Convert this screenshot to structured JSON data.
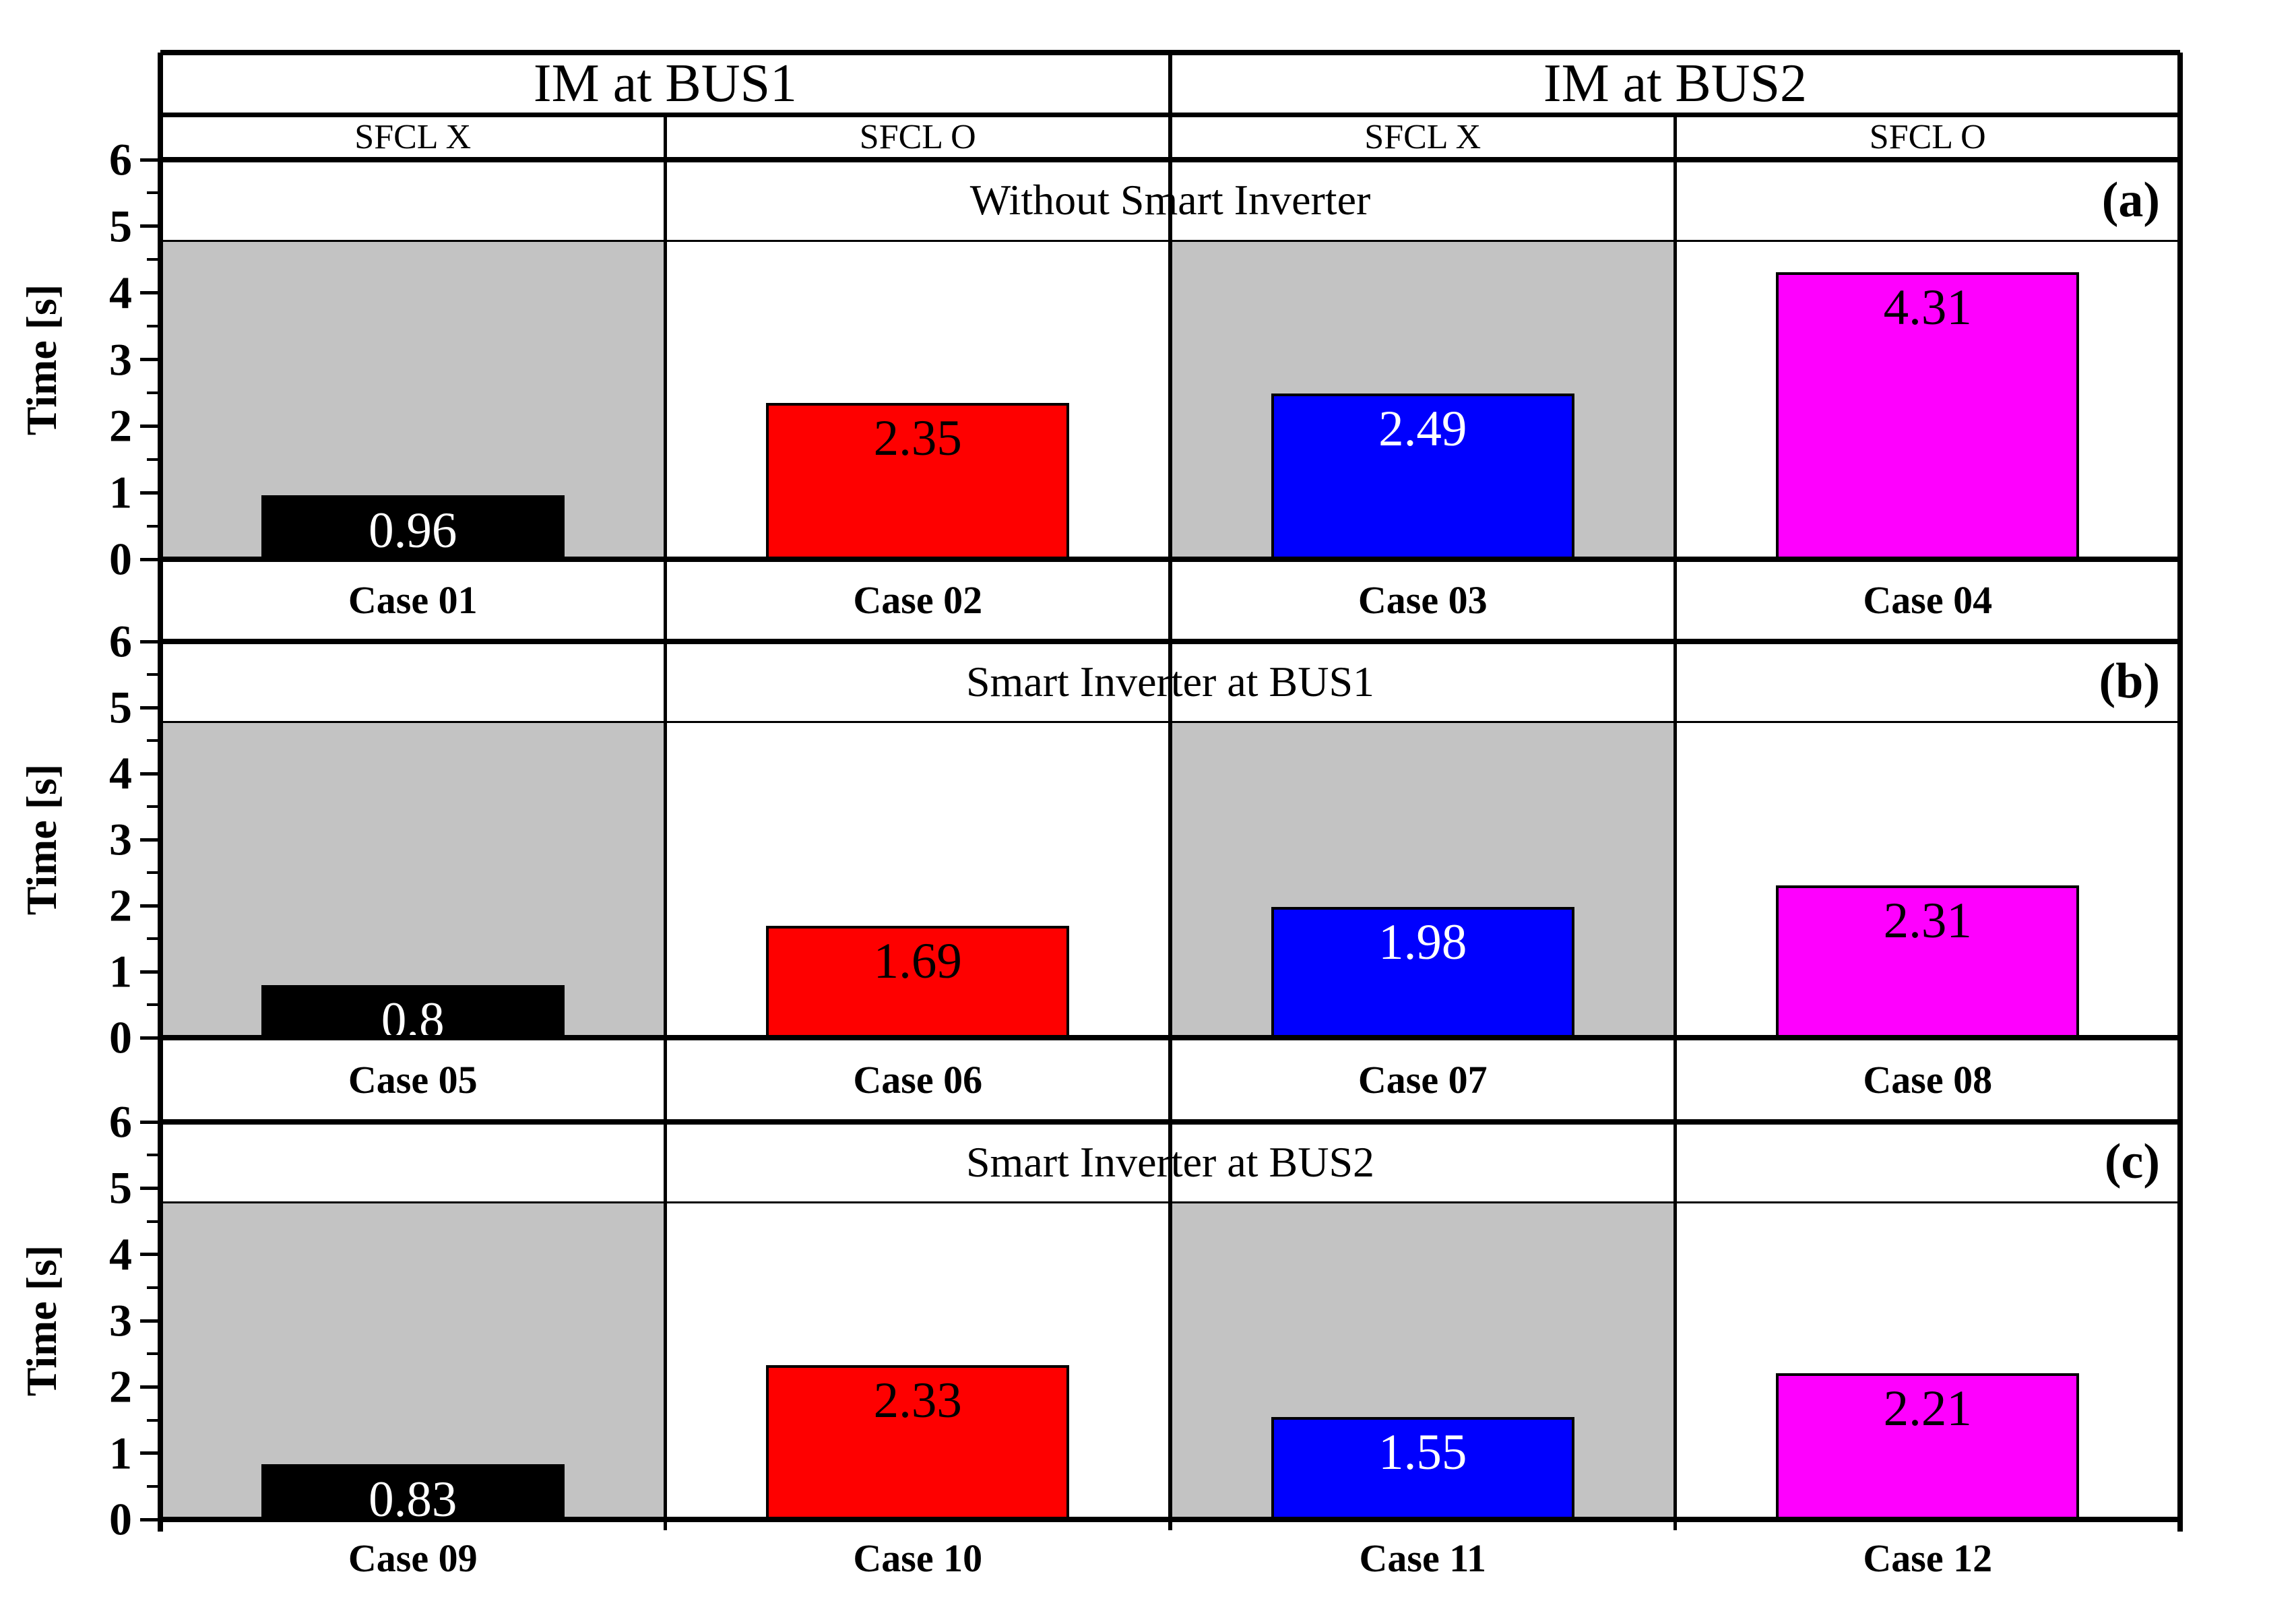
{
  "figure": {
    "y_axis_label": "Time [s]",
    "y_ticks": [
      "0",
      "1",
      "2",
      "3",
      "4",
      "5",
      "6"
    ],
    "header_groups": [
      "IM at BUS1",
      "IM at BUS2"
    ],
    "header_subgroups": [
      "SFCL X",
      "SFCL O",
      "SFCL X",
      "SFCL O"
    ],
    "shaded_band_top_value": 4.78,
    "colors": {
      "background": "#ffffff",
      "frame": "#000000",
      "shaded_column": "#c3c3c3",
      "bar_black": "#000000",
      "bar_red": "#fe0000",
      "bar_blue": "#0000fe",
      "bar_magenta": "#fe00fe",
      "label_on_dark": "#ffffff",
      "label_on_light": "#000000"
    }
  },
  "chart_data": [
    {
      "type": "bar",
      "panel_tag": "(a)",
      "title": "Without Smart Inverter",
      "categories": [
        "Case 01",
        "Case 02",
        "Case 03",
        "Case 04"
      ],
      "values": [
        0.96,
        2.35,
        2.49,
        4.31
      ],
      "bar_colors": [
        "#000000",
        "#fe0000",
        "#0000fe",
        "#fe00fe"
      ],
      "value_label_colors": [
        "#ffffff",
        "#000000",
        "#ffffff",
        "#000000"
      ],
      "column_headers": [
        "SFCL X",
        "SFCL O",
        "SFCL X",
        "SFCL O"
      ],
      "column_groups": [
        "IM at BUS1",
        "IM at BUS1",
        "IM at BUS2",
        "IM at BUS2"
      ],
      "shaded_category_indices": [
        0,
        2
      ],
      "xlabel": "",
      "ylabel": "Time [s]",
      "ylim": [
        0,
        6
      ],
      "grid": false,
      "legend": false
    },
    {
      "type": "bar",
      "panel_tag": "(b)",
      "title": "Smart Inverter at BUS1",
      "categories": [
        "Case 05",
        "Case 06",
        "Case 07",
        "Case 08"
      ],
      "values": [
        0.8,
        1.69,
        1.98,
        2.31
      ],
      "bar_colors": [
        "#000000",
        "#fe0000",
        "#0000fe",
        "#fe00fe"
      ],
      "value_label_colors": [
        "#ffffff",
        "#000000",
        "#ffffff",
        "#000000"
      ],
      "column_headers": [
        "SFCL X",
        "SFCL O",
        "SFCL X",
        "SFCL O"
      ],
      "column_groups": [
        "IM at BUS1",
        "IM at BUS1",
        "IM at BUS2",
        "IM at BUS2"
      ],
      "shaded_category_indices": [
        0,
        2
      ],
      "xlabel": "",
      "ylabel": "Time [s]",
      "ylim": [
        0,
        6
      ],
      "grid": false,
      "legend": false
    },
    {
      "type": "bar",
      "panel_tag": "(c)",
      "title": "Smart Inverter at BUS2",
      "categories": [
        "Case 09",
        "Case 10",
        "Case 11",
        "Case 12"
      ],
      "values": [
        0.83,
        2.33,
        1.55,
        2.21
      ],
      "bar_colors": [
        "#000000",
        "#fe0000",
        "#0000fe",
        "#fe00fe"
      ],
      "value_label_colors": [
        "#ffffff",
        "#000000",
        "#ffffff",
        "#000000"
      ],
      "column_headers": [
        "SFCL X",
        "SFCL O",
        "SFCL X",
        "SFCL O"
      ],
      "column_groups": [
        "IM at BUS1",
        "IM at BUS1",
        "IM at BUS2",
        "IM at BUS2"
      ],
      "shaded_category_indices": [
        0,
        2
      ],
      "xlabel": "",
      "ylabel": "Time [s]",
      "ylim": [
        0,
        6
      ],
      "grid": false,
      "legend": false
    }
  ]
}
